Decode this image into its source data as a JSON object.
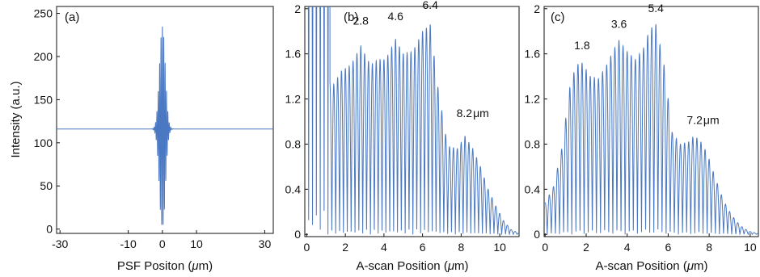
{
  "figure": {
    "line_color": "#4a78c2",
    "axis_color": "#111111"
  },
  "chart_data": [
    {
      "panel_label": "(a)",
      "type": "line",
      "ylabel": "Intensity (a.u.)",
      "xlabel_parts": [
        "PSF  Positon (",
        "μ",
        "m)"
      ],
      "xlim": [
        -31,
        32.5
      ],
      "ylim": [
        -5,
        258
      ],
      "xticks": [
        -30,
        -10,
        0,
        10,
        30
      ],
      "yticks": [
        0,
        50,
        100,
        150,
        200,
        250
      ],
      "series": [
        {
          "kind": "psf",
          "baseline": 116,
          "packet_sigma": 0.85,
          "carrier_period": 0.4,
          "peak": 236,
          "trough": 5
        }
      ],
      "annotations": []
    },
    {
      "panel_label": "(b)",
      "type": "line",
      "ylabel": "",
      "xlabel_parts": [
        "A-scan  Position (",
        "μ",
        "m)"
      ],
      "xlim": [
        -0.1,
        11
      ],
      "ylim": [
        -0.02,
        2.02
      ],
      "xticks": [
        0,
        2,
        4,
        6,
        8,
        10
      ],
      "yticks": [
        0,
        0.4,
        0.8,
        1.2,
        1.6,
        2
      ],
      "series": [
        {
          "kind": "ascan",
          "fringe_period": 0.2,
          "saturated_until": 1.2,
          "envelope": [
            [
              0,
              1.9
            ],
            [
              1.3,
              1.3
            ],
            [
              1.8,
              1.45
            ],
            [
              2.3,
              1.5
            ],
            [
              2.8,
              1.67
            ],
            [
              3.3,
              1.5
            ],
            [
              3.7,
              1.55
            ],
            [
              4.1,
              1.55
            ],
            [
              4.6,
              1.73
            ],
            [
              5.0,
              1.6
            ],
            [
              5.5,
              1.62
            ],
            [
              6.0,
              1.8
            ],
            [
              6.4,
              1.86
            ],
            [
              6.8,
              1.3
            ],
            [
              7.3,
              0.78
            ],
            [
              7.8,
              0.76
            ],
            [
              8.2,
              0.87
            ],
            [
              8.6,
              0.76
            ],
            [
              9.0,
              0.6
            ],
            [
              9.4,
              0.4
            ],
            [
              9.8,
              0.25
            ],
            [
              10.2,
              0.12
            ],
            [
              10.6,
              0.04
            ],
            [
              11.0,
              0.01
            ]
          ]
        }
      ],
      "annotations": [
        {
          "x": 2.8,
          "y": 1.86,
          "text": "2.8"
        },
        {
          "x": 4.6,
          "y": 1.9,
          "text": "4.6"
        },
        {
          "x": 6.4,
          "y": 2.0,
          "text": "6.4"
        },
        {
          "x": 8.6,
          "y": 1.04,
          "text": "8.2",
          "unit": "μm"
        }
      ]
    },
    {
      "panel_label": "(c)",
      "type": "line",
      "ylabel": "",
      "xlabel_parts": [
        "A-scan  Position (",
        "μ",
        "m)"
      ],
      "xlim": [
        -0.05,
        10.4
      ],
      "ylim": [
        -0.02,
        2.02
      ],
      "xticks": [
        0,
        2,
        4,
        6,
        8,
        10
      ],
      "yticks": [
        0,
        0.4,
        0.8,
        1.2,
        1.6,
        2
      ],
      "series": [
        {
          "kind": "ascan",
          "fringe_period": 0.2,
          "saturated_until": 0,
          "envelope": [
            [
              0,
              0.28
            ],
            [
              0.4,
              0.42
            ],
            [
              0.8,
              0.75
            ],
            [
              1.2,
              1.3
            ],
            [
              1.5,
              1.5
            ],
            [
              1.8,
              1.52
            ],
            [
              2.2,
              1.4
            ],
            [
              2.6,
              1.38
            ],
            [
              3.0,
              1.5
            ],
            [
              3.3,
              1.62
            ],
            [
              3.6,
              1.72
            ],
            [
              4.0,
              1.62
            ],
            [
              4.4,
              1.55
            ],
            [
              4.8,
              1.65
            ],
            [
              5.1,
              1.82
            ],
            [
              5.4,
              1.86
            ],
            [
              5.8,
              1.5
            ],
            [
              6.2,
              0.9
            ],
            [
              6.6,
              0.8
            ],
            [
              7.0,
              0.82
            ],
            [
              7.2,
              0.86
            ],
            [
              7.5,
              0.85
            ],
            [
              7.9,
              0.72
            ],
            [
              8.3,
              0.5
            ],
            [
              8.7,
              0.3
            ],
            [
              9.1,
              0.17
            ],
            [
              9.5,
              0.08
            ],
            [
              9.9,
              0.03
            ],
            [
              10.3,
              0.01
            ]
          ]
        }
      ],
      "annotations": [
        {
          "x": 1.8,
          "y": 1.64,
          "text": "1.8"
        },
        {
          "x": 3.6,
          "y": 1.83,
          "text": "3.6"
        },
        {
          "x": 5.4,
          "y": 1.97,
          "text": "5.4"
        },
        {
          "x": 7.7,
          "y": 0.98,
          "text": "7.2",
          "unit": "μm"
        }
      ]
    }
  ]
}
